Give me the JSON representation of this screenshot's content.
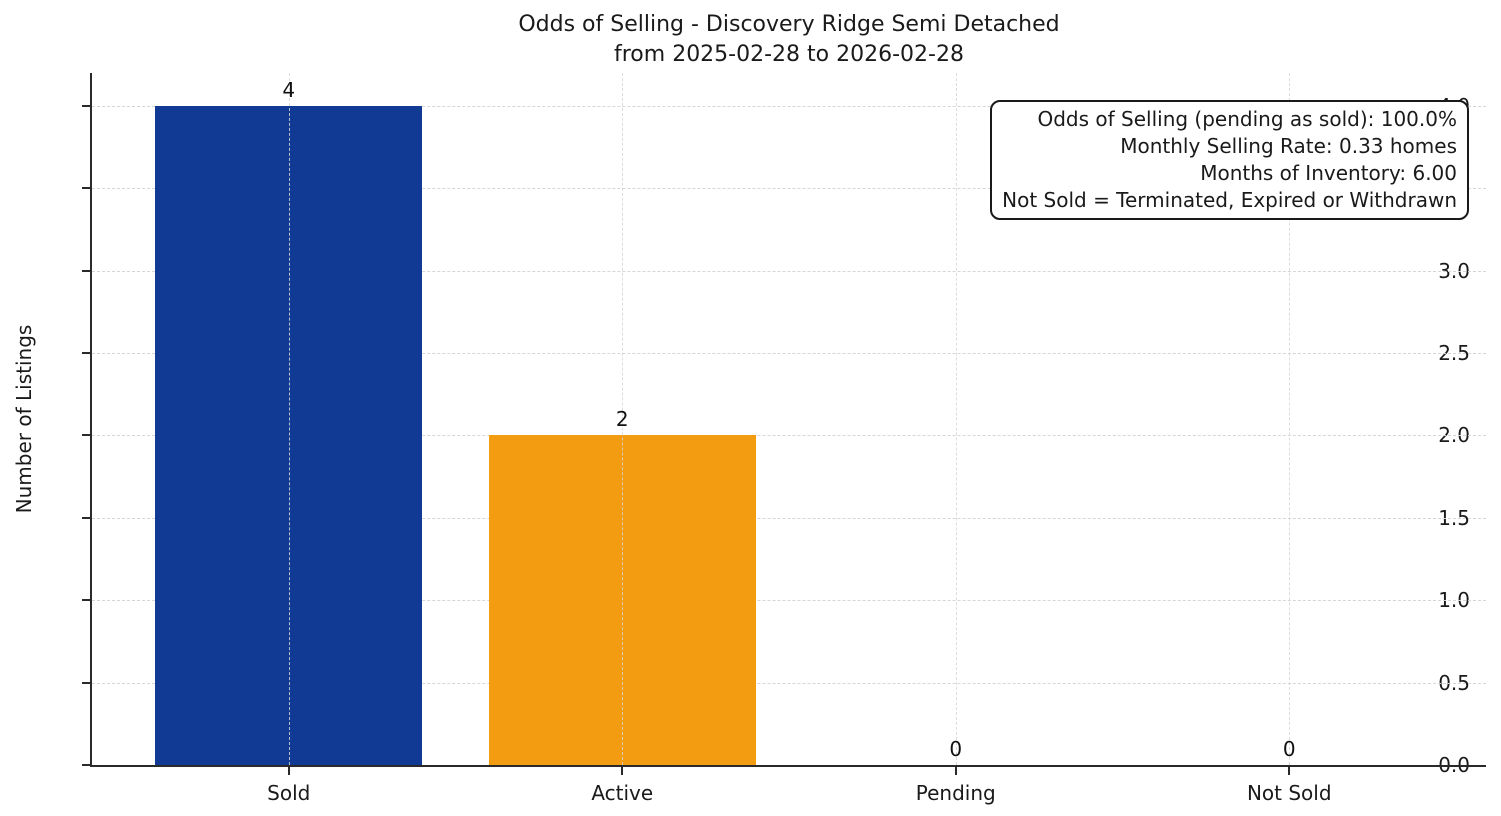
{
  "chart_data": {
    "type": "bar",
    "title": "Odds of Selling - Discovery Ridge Semi Detached",
    "subtitle": "from 2025-02-28 to 2026-02-28",
    "categories": [
      "Sold",
      "Active",
      "Pending",
      "Not Sold"
    ],
    "values": [
      4,
      2,
      0,
      0
    ],
    "value_labels": [
      "4",
      "2",
      "0",
      "0"
    ],
    "bar_colors": [
      "#113a94",
      "#f39c12",
      null,
      null
    ],
    "ylabel": "Number of Listings",
    "xlabel": "",
    "ylim": [
      0,
      4.2
    ],
    "yticks": [
      0.0,
      0.5,
      1.0,
      1.5,
      2.0,
      2.5,
      3.0,
      3.5,
      4.0
    ],
    "grid": true,
    "grid_style": "dashed",
    "legend": "none",
    "annotation": {
      "lines": [
        "Odds of Selling (pending as sold): 100.0%",
        "Monthly Selling Rate: 0.33 homes",
        "Months of Inventory: 6.00",
        "Not Sold = Terminated, Expired or Withdrawn"
      ]
    },
    "colors": {
      "sold_bar": "#113a94",
      "active_bar": "#f39c12",
      "grid": "#d6d6d6",
      "spine": "#2a2a2a",
      "text": "#1a1a1a",
      "background": "#ffffff"
    }
  }
}
